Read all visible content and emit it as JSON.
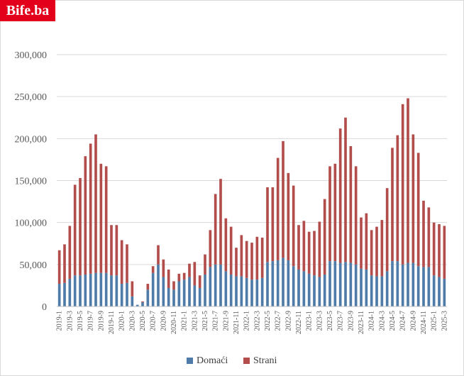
{
  "brand": {
    "logo_text": "Bife.ba",
    "logo_color": "#e3001b"
  },
  "chart_data": {
    "type": "bar",
    "stacked": true,
    "title": "",
    "xlabel": "",
    "ylabel": "",
    "ylim": [
      0,
      300000
    ],
    "yticks": [
      "0",
      "50,000",
      "100,000",
      "150,000",
      "200,000",
      "250,000",
      "300,000"
    ],
    "grid": true,
    "legend_position": "bottom",
    "categories": [
      "2019-1",
      "2019-2",
      "2019-3",
      "2019-4",
      "2019-5",
      "2019-6",
      "2019-7",
      "2019-8",
      "2019-9",
      "2019-10",
      "2019-11",
      "2019-12",
      "2020-1",
      "2020-2",
      "2020-3",
      "2020-4",
      "2020-5",
      "2020-6",
      "2020-7",
      "2020-8",
      "2020-9",
      "2020-10",
      "2020-11",
      "2020-12",
      "2021-1",
      "2021-2",
      "2021-3",
      "2021-4",
      "2021-5",
      "2021-6",
      "2021-7",
      "2021-8",
      "2021-9",
      "2021-10",
      "2021-11",
      "2021-12",
      "2022-1",
      "2022-2",
      "2022-3",
      "2022-4",
      "2022-5",
      "2022-6",
      "2022-7",
      "2022-8",
      "2022-9",
      "2022-10",
      "2022-11",
      "2022-12",
      "2023-1",
      "2023-2",
      "2023-3",
      "2023-4",
      "2023-5",
      "2023-6",
      "2023-7",
      "2023-8",
      "2023-9",
      "2023-10",
      "2023-11",
      "2023-12",
      "2024-1",
      "2024-2",
      "2024-3",
      "2024-4",
      "2024-5",
      "2024-6",
      "2024-7",
      "2024-8",
      "2024-9",
      "2024-10",
      "2024-11",
      "2024-12",
      "2025-1",
      "2025-2",
      "2025-3"
    ],
    "xtick_labels": [
      "2019-1",
      "2019-3",
      "2019-5",
      "2019-7",
      "2019-9",
      "2019-11",
      "2020-1",
      "2020-3",
      "2020-5",
      "2020-7",
      "2020-9",
      "2020-11",
      "2021-1",
      "2021-3",
      "2021-5",
      "2021-7",
      "2021-9",
      "2021-11",
      "2022-1",
      "2022-3",
      "2022-5",
      "2022-7",
      "2022-9",
      "2022-11",
      "2023-1",
      "2023-3",
      "2023-5",
      "2023-7",
      "2023-9",
      "2023-11",
      "2024-1",
      "2024-3",
      "2024-5",
      "2024-7",
      "2024-9",
      "2024-11",
      "2025-1",
      "2025-3"
    ],
    "series": [
      {
        "name": "Domaći",
        "color": "#4e7ba8",
        "values": [
          27000,
          28000,
          33000,
          37000,
          37000,
          38000,
          39000,
          40000,
          40000,
          40000,
          37000,
          37000,
          27000,
          28000,
          12000,
          2000,
          5000,
          20000,
          40000,
          50000,
          35000,
          22000,
          20000,
          30000,
          32000,
          35000,
          25000,
          22000,
          38000,
          47000,
          50000,
          50000,
          42000,
          38000,
          36000,
          36000,
          34000,
          32000,
          32000,
          34000,
          53000,
          54000,
          55000,
          58000,
          55000,
          48000,
          44000,
          42000,
          39000,
          37000,
          35000,
          38000,
          54000,
          54000,
          52000,
          53000,
          52000,
          50000,
          45000,
          44000,
          37000,
          36000,
          36000,
          42000,
          54000,
          54000,
          50000,
          52000,
          52000,
          48000,
          47000,
          47000,
          37000,
          35000,
          33000
        ]
      },
      {
        "name": "Strani",
        "color": "#b24d4b",
        "values": [
          40000,
          46000,
          63000,
          108000,
          116000,
          141000,
          155000,
          165000,
          130000,
          127000,
          60000,
          60000,
          52000,
          46000,
          18000,
          0,
          1000,
          7000,
          8000,
          23000,
          21000,
          22000,
          10000,
          9000,
          8000,
          16000,
          28000,
          15000,
          24000,
          44000,
          84000,
          102000,
          63000,
          57000,
          34000,
          49000,
          44000,
          44000,
          51000,
          48000,
          89000,
          88000,
          122000,
          139000,
          104000,
          96000,
          53000,
          60000,
          50000,
          53000,
          66000,
          90000,
          113000,
          116000,
          160000,
          172000,
          139000,
          117000,
          61000,
          67000,
          54000,
          59000,
          67000,
          99000,
          135000,
          150000,
          191000,
          196000,
          153000,
          135000,
          79000,
          71000,
          63000,
          63000,
          63000
        ]
      }
    ]
  }
}
